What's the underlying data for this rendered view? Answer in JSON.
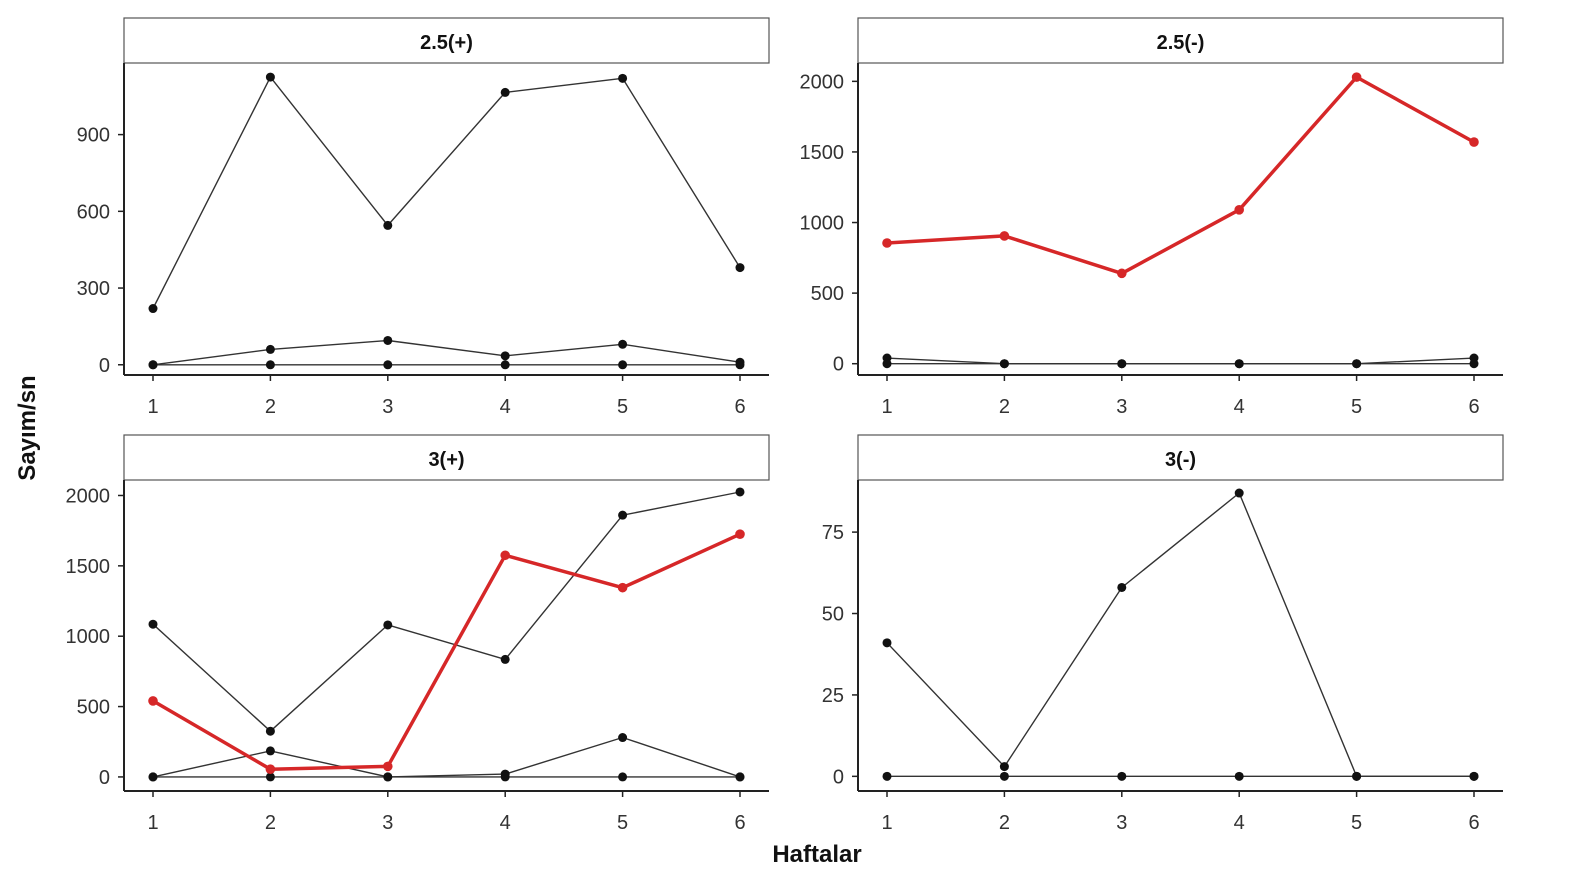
{
  "figure": {
    "ylabel": "Sayım/sn",
    "xlabel": "Haftalar"
  },
  "chart_data": [
    {
      "type": "line",
      "title": "2.5(+)",
      "x": [
        1,
        2,
        3,
        4,
        5,
        6
      ],
      "ylim": [
        -40,
        1180
      ],
      "yticks": [
        0,
        300,
        600,
        900
      ],
      "series": [
        {
          "values": [
            220,
            1125,
            545,
            1065,
            1120,
            380
          ],
          "color": "#333333",
          "highlight": false
        },
        {
          "values": [
            0,
            60,
            95,
            35,
            80,
            10
          ],
          "color": "#333333",
          "highlight": false
        },
        {
          "values": [
            0,
            0,
            0,
            0,
            0,
            0
          ],
          "color": "#333333",
          "highlight": false
        }
      ]
    },
    {
      "type": "line",
      "title": "2.5(-)",
      "x": [
        1,
        2,
        3,
        4,
        5,
        6
      ],
      "ylim": [
        -80,
        2130
      ],
      "yticks": [
        0,
        500,
        1000,
        1500,
        2000
      ],
      "series": [
        {
          "values": [
            855,
            905,
            640,
            1090,
            2030,
            1570
          ],
          "color": "#d62728",
          "highlight": true
        },
        {
          "values": [
            40,
            0,
            0,
            0,
            0,
            40
          ],
          "color": "#333333",
          "highlight": false
        },
        {
          "values": [
            0,
            0,
            0,
            0,
            0,
            0
          ],
          "color": "#333333",
          "highlight": false
        }
      ]
    },
    {
      "type": "line",
      "title": "3(+)",
      "x": [
        1,
        2,
        3,
        4,
        5,
        6
      ],
      "ylim": [
        -100,
        2110
      ],
      "yticks": [
        0,
        500,
        1000,
        1500,
        2000
      ],
      "series": [
        {
          "values": [
            1085,
            325,
            1080,
            835,
            1860,
            2025
          ],
          "color": "#333333",
          "highlight": false
        },
        {
          "values": [
            540,
            55,
            75,
            1575,
            1345,
            1725
          ],
          "color": "#d62728",
          "highlight": true
        },
        {
          "values": [
            0,
            185,
            0,
            20,
            280,
            0
          ],
          "color": "#333333",
          "highlight": false
        },
        {
          "values": [
            0,
            0,
            0,
            0,
            0,
            0
          ],
          "color": "#333333",
          "highlight": false
        }
      ]
    },
    {
      "type": "line",
      "title": "3(-)",
      "x": [
        1,
        2,
        3,
        4,
        5,
        6
      ],
      "ylim": [
        -4.5,
        91
      ],
      "yticks": [
        0,
        25,
        50,
        75
      ],
      "series": [
        {
          "values": [
            41,
            3,
            58,
            87,
            0,
            0
          ],
          "color": "#333333",
          "highlight": false
        },
        {
          "values": [
            0,
            0,
            0,
            0,
            0,
            0
          ],
          "color": "#333333",
          "highlight": false
        }
      ]
    }
  ]
}
